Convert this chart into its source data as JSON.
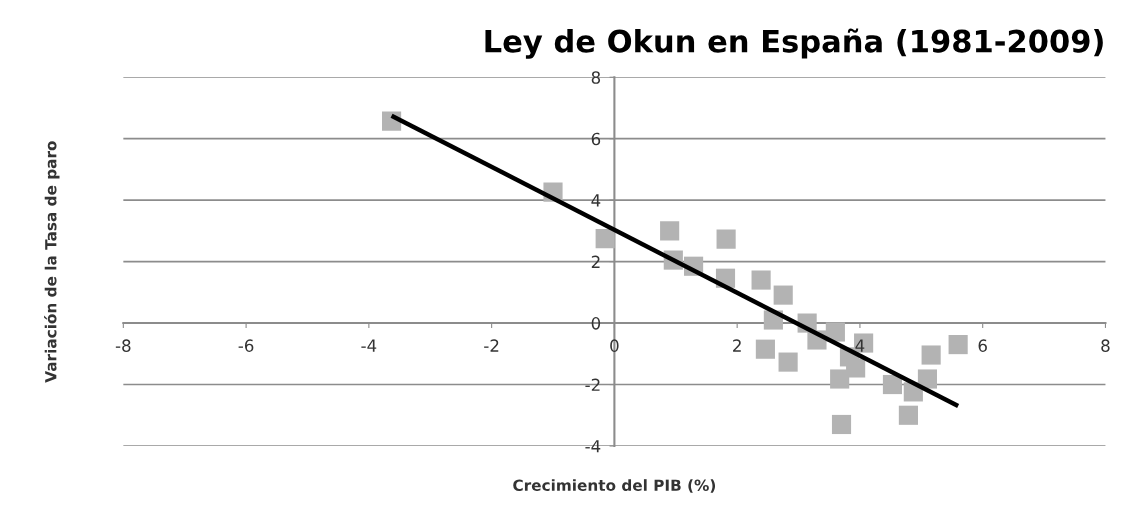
{
  "chart_data": {
    "type": "scatter",
    "title": "Ley de Okun en España (1981-2009)",
    "xlabel": "Crecimiento del PIB (%)",
    "ylabel": "Variación de la Tasa de paro",
    "xlim": [
      -8,
      8
    ],
    "xticks": [
      -8,
      -6,
      -4,
      -2,
      0,
      2,
      4,
      6,
      8
    ],
    "ylim": [
      -4,
      8
    ],
    "yticks": [
      -4,
      -2,
      0,
      2,
      4,
      6,
      8
    ],
    "grid": "y",
    "marker": "square",
    "legend": false,
    "series": [
      {
        "color": "#b3b3b3",
        "x": [
          -3.63,
          -1.0,
          -0.15,
          0.9,
          1.82,
          0.96,
          1.29,
          1.81,
          2.39,
          2.75,
          2.59,
          3.14,
          3.6,
          3.3,
          4.06,
          2.46,
          2.83,
          3.83,
          3.93,
          3.67,
          5.16,
          5.1,
          4.53,
          4.87,
          4.79,
          3.7,
          5.6
        ],
        "values": [
          6.57,
          4.26,
          2.75,
          3.0,
          2.73,
          2.05,
          1.85,
          1.46,
          1.4,
          0.91,
          0.1,
          0.0,
          -0.29,
          -0.55,
          -0.65,
          -0.85,
          -1.27,
          -1.1,
          -1.46,
          -1.82,
          -1.04,
          -1.82,
          -2.0,
          -2.24,
          -3.0,
          -3.3,
          -0.7
        ]
      },
      {
        "type": "line",
        "color": "#000000",
        "marker": "none",
        "line_style": "solid",
        "x": [
          -3.63,
          5.6
        ],
        "values": [
          6.75,
          -2.7
        ]
      }
    ]
  }
}
